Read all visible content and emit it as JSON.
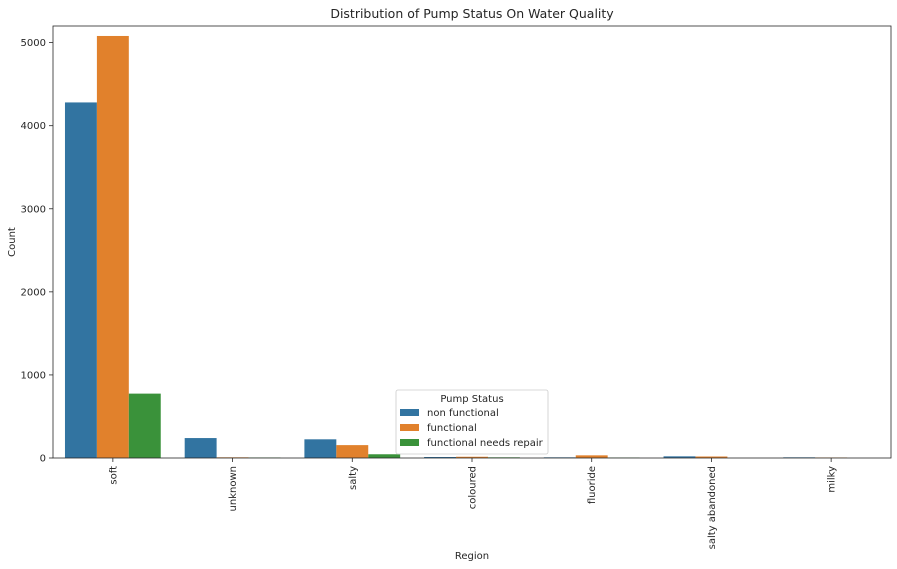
{
  "chart_data": {
    "type": "bar",
    "title": "Distribution of Pump Status On Water Quality",
    "xlabel": "Region",
    "ylabel": "Count",
    "ylim": [
      0,
      5200
    ],
    "yticks": [
      0,
      1000,
      2000,
      3000,
      4000,
      5000
    ],
    "grid": false,
    "legend_title": "Pump Status",
    "legend_position": "lower-center",
    "categories": [
      "soft",
      "unknown",
      "salty",
      "coloured",
      "fluoride",
      "salty abandoned",
      "milky"
    ],
    "series": [
      {
        "name": "non functional",
        "color": "#3274a1",
        "values": [
          4280,
          240,
          225,
          12,
          8,
          20,
          8
        ]
      },
      {
        "name": "functional",
        "color": "#e1812c",
        "values": [
          5080,
          8,
          155,
          15,
          32,
          18,
          6
        ]
      },
      {
        "name": "functional needs repair",
        "color": "#3a923a",
        "values": [
          775,
          6,
          45,
          8,
          5,
          0,
          0
        ]
      }
    ]
  }
}
